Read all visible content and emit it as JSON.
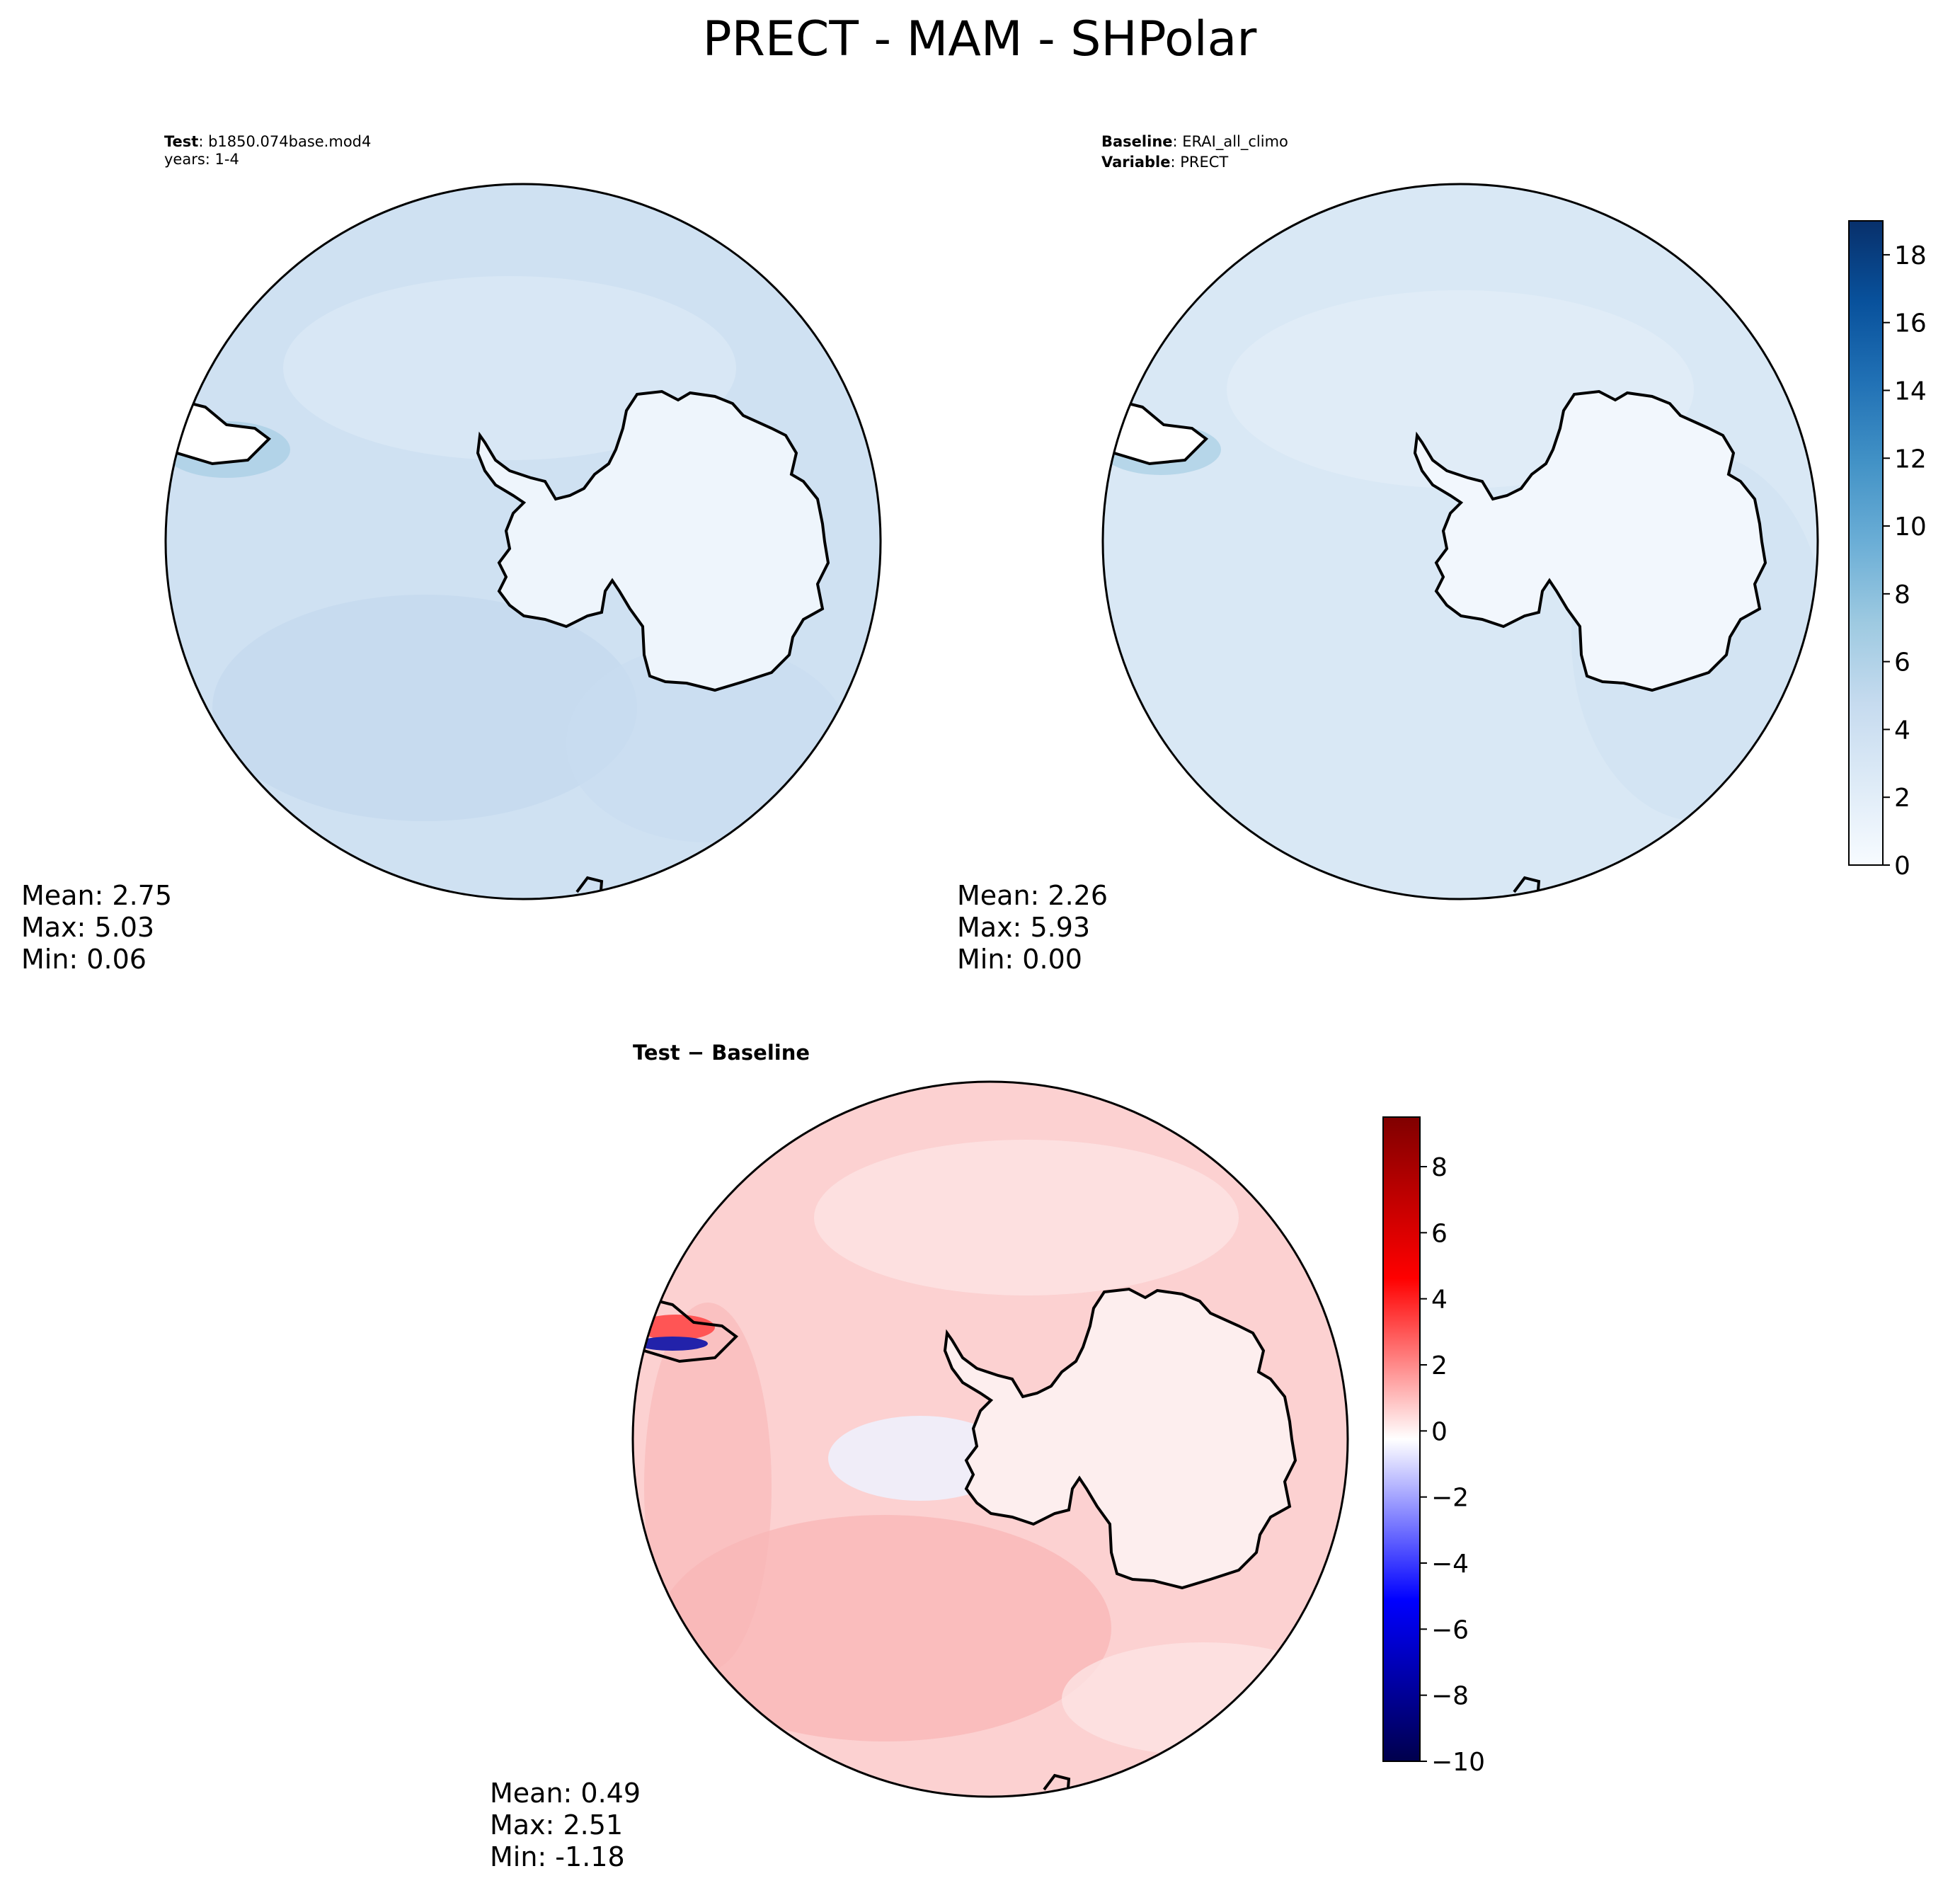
{
  "figure": {
    "title": "PRECT - MAM - SHPolar"
  },
  "panels": {
    "test": {
      "label_key": "Test",
      "label_value": "b1850.074base.mod4",
      "line2": "years: 1-4",
      "stats": [
        "Mean:  2.75",
        "Max:  5.03",
        "Min:  0.06"
      ]
    },
    "baseline": {
      "label1_key": "Baseline",
      "label1_value": "ERAI_all_climo",
      "label2_key": "Variable",
      "label2_value": "PRECT",
      "stats": [
        "Mean:  2.26",
        "Max:  5.93",
        "Min:  0.00"
      ]
    },
    "diff": {
      "title": "Test − Baseline",
      "stats": [
        "Mean:  0.49",
        "Max:  2.51",
        "Min: -1.18"
      ]
    }
  },
  "colorbars": {
    "precip": {
      "colormap": "Blues",
      "range": [
        0,
        19
      ],
      "ticks": [
        "0",
        "2",
        "4",
        "6",
        "8",
        "10",
        "12",
        "14",
        "16",
        "18"
      ],
      "colors": [
        "#f7fbff",
        "#deebf7",
        "#c6dbef",
        "#9ecae1",
        "#6baed6",
        "#4292c6",
        "#2171b5",
        "#08519c",
        "#08306b"
      ]
    },
    "diff": {
      "colormap": "seismic",
      "range": [
        -10,
        9.5
      ],
      "ticks": [
        "−10",
        "−8",
        "−6",
        "−4",
        "−2",
        "0",
        "2",
        "4",
        "6",
        "8"
      ],
      "colors": [
        "#00004c",
        "#0000ff",
        "#ffffff",
        "#ff0000",
        "#800000"
      ]
    }
  },
  "fields": {
    "test_ocean": "#cfe1f2",
    "test_land": "#eef5fc",
    "baseline_ocean": "#d9e8f5",
    "baseline_land": "#f2f7fd",
    "diff_ocean": "#fcd1d1",
    "diff_land": "#fdeeee"
  }
}
